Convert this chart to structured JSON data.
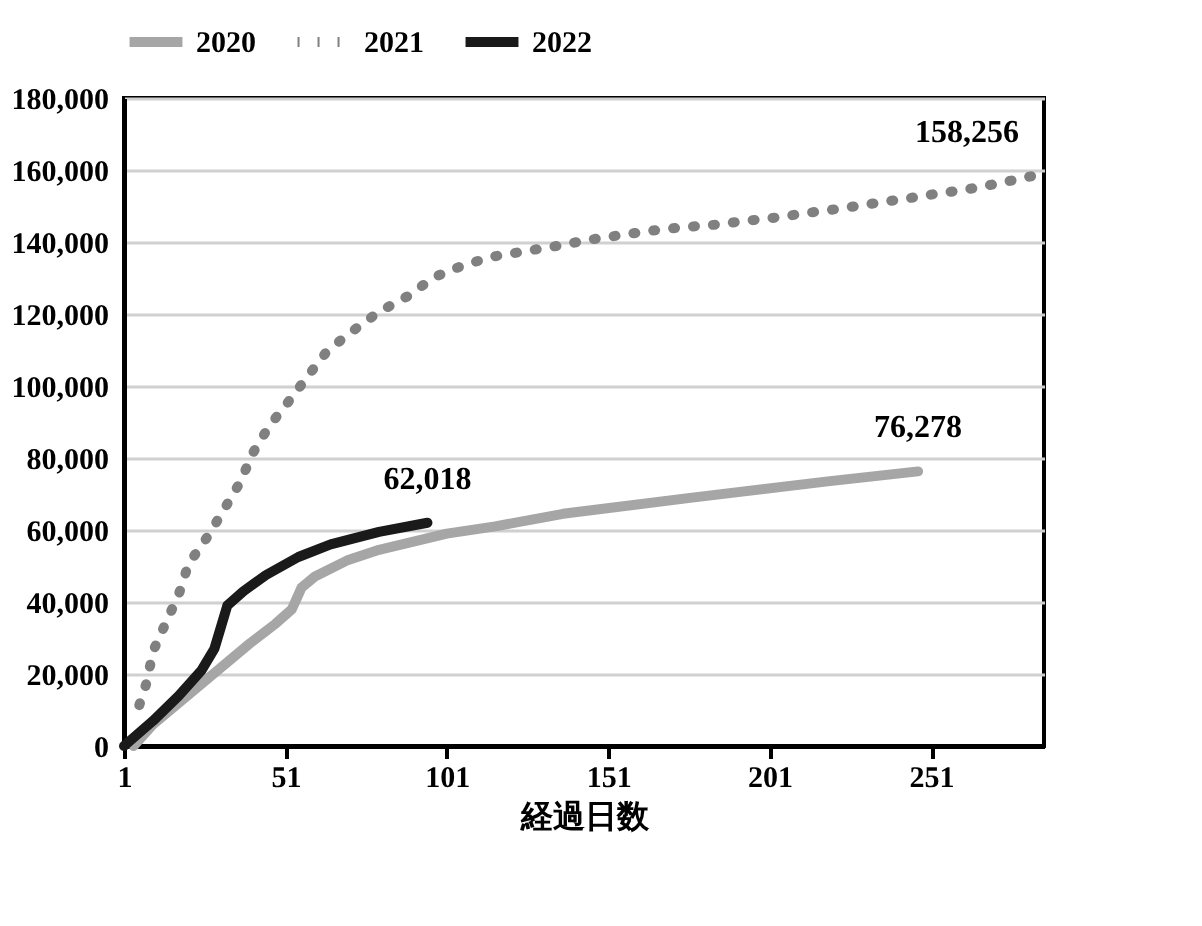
{
  "chart_data": {
    "type": "line",
    "xlabel": "経過日数",
    "xlim": [
      1,
      286
    ],
    "xticks": [
      1,
      51,
      101,
      151,
      201,
      251
    ],
    "ylim": [
      0,
      180000
    ],
    "yticks": [
      {
        "value": 0,
        "label": "0"
      },
      {
        "value": 20000,
        "label": "20,000"
      },
      {
        "value": 40000,
        "label": "40,000"
      },
      {
        "value": 60000,
        "label": "60,000"
      },
      {
        "value": 80000,
        "label": "80,000"
      },
      {
        "value": 100000,
        "label": "100,000"
      },
      {
        "value": 120000,
        "label": "120,000"
      },
      {
        "value": 140000,
        "label": "140,000"
      },
      {
        "value": 160000,
        "label": "160,000"
      },
      {
        "value": 180000,
        "label": "180,000"
      }
    ],
    "grid": "y",
    "legend": "top",
    "marker": "none",
    "series": [
      {
        "name": "2020",
        "color": "#a6a6a6",
        "line_style": "solid",
        "x": [
          4,
          10,
          20,
          30,
          40,
          48,
          53,
          56,
          60,
          70,
          80,
          101,
          116,
          137,
          177,
          219,
          247
        ],
        "values": [
          0,
          6000,
          13500,
          21000,
          28500,
          34000,
          38000,
          44000,
          47000,
          51500,
          54500,
          59000,
          61000,
          64500,
          69000,
          73500,
          76278
        ]
      },
      {
        "name": "2021",
        "color": "#808080",
        "line_style": "dotted",
        "x": [
          5,
          8,
          10,
          14,
          18,
          21,
          27,
          32,
          37,
          41,
          46,
          52,
          58,
          64,
          72,
          80,
          89,
          97,
          106,
          115,
          125,
          135,
          145,
          154,
          164,
          174,
          184,
          194,
          203,
          213,
          223,
          233,
          243,
          252,
          262,
          272,
          282
        ],
        "values": [
          9300,
          17600,
          26300,
          34300,
          42200,
          50600,
          58300,
          65700,
          73300,
          81500,
          88900,
          95700,
          102800,
          109800,
          115400,
          120600,
          125000,
          130200,
          133500,
          135900,
          137400,
          138900,
          140600,
          141800,
          143100,
          144100,
          144800,
          145900,
          146800,
          148100,
          149300,
          150700,
          152000,
          153300,
          154600,
          156300,
          158256
        ]
      },
      {
        "name": "2022",
        "color": "#1a1a1a",
        "line_style": "solid",
        "x": [
          1,
          10,
          18,
          25,
          29,
          31,
          33,
          38,
          45,
          55,
          65,
          80,
          95
        ],
        "values": [
          0,
          7000,
          14000,
          21000,
          27000,
          33000,
          39000,
          43000,
          47500,
          52500,
          56000,
          59500,
          62018
        ]
      }
    ],
    "annotations": [
      {
        "text": "62,018",
        "x": 95,
        "y": 62018
      },
      {
        "text": "76,278",
        "x": 247,
        "y": 76278
      },
      {
        "text": "158,256",
        "x": 282,
        "y": 158256
      }
    ]
  }
}
